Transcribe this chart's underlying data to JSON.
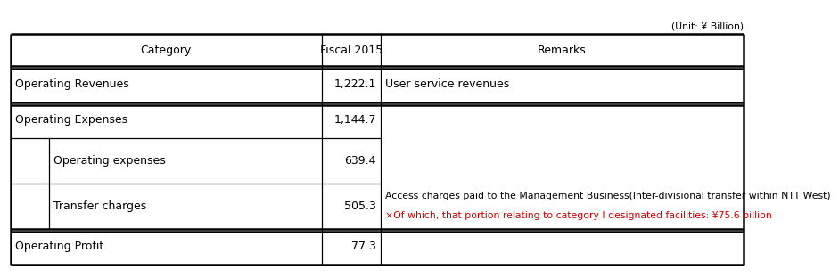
{
  "unit_label": "(Unit: ¥ Billion)",
  "col_headers": [
    "Category",
    "Fiscal 2015",
    "Remarks"
  ],
  "text_color": "#000000",
  "remark2_color": "#cc0000",
  "header_fontsize": 9,
  "body_fontsize": 9,
  "remark_fontsize": 7.8,
  "unit_fontsize": 7.8,
  "rows": [
    {
      "label": "Operating Revenues",
      "value": "1,222.1",
      "remark_line1": "User service revenues",
      "remark_line2": null,
      "indent": false
    },
    {
      "label": "Operating Expenses",
      "value": "1,144.7",
      "remark_line1": null,
      "remark_line2": null,
      "indent": false
    },
    {
      "label": "Operating expenses",
      "value": "639.4",
      "remark_line1": null,
      "remark_line2": null,
      "indent": true
    },
    {
      "label": "Transfer charges",
      "value": "505.3",
      "remark_line1": "Access charges paid to the Management Business(Inter-divisional transfer within NTT West)",
      "remark_line2": "×Of which, that portion relating to category I designated facilities: ¥75.6 billion",
      "indent": true
    },
    {
      "label": "Operating Profit",
      "value": "77.3",
      "remark_line1": null,
      "remark_line2": null,
      "indent": false
    }
  ]
}
